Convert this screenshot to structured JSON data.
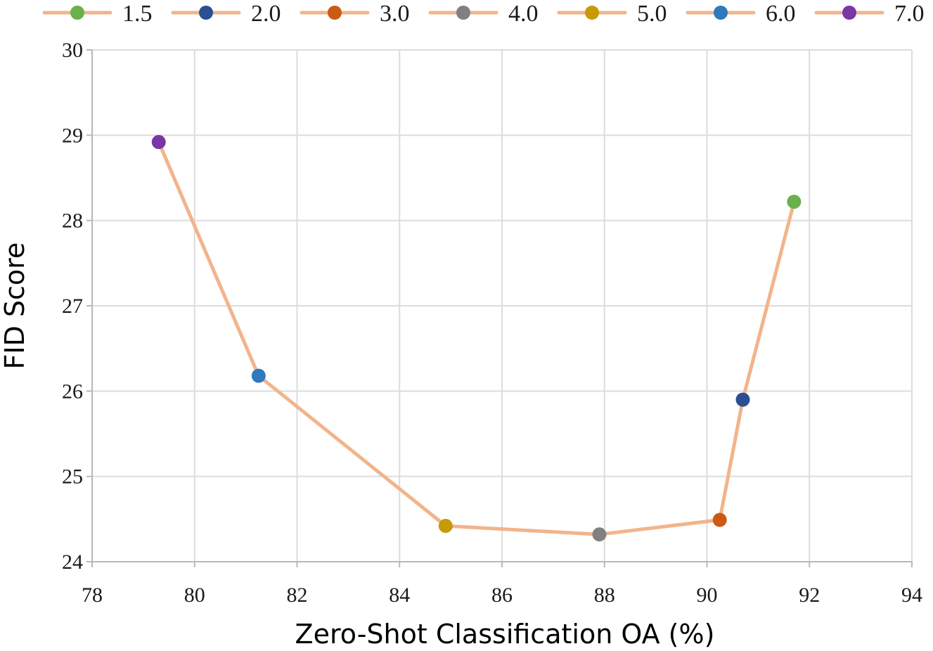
{
  "chart_data": {
    "type": "line",
    "xlabel": "Zero-Shot Classification OA (%)",
    "ylabel": "FID Score",
    "xlim": [
      78,
      94
    ],
    "ylim": [
      24,
      30
    ],
    "x_ticks": [
      78,
      80,
      82,
      84,
      86,
      88,
      90,
      92,
      94
    ],
    "y_ticks": [
      24,
      25,
      26,
      27,
      28,
      29,
      30
    ],
    "grid": true,
    "legend_position": "top",
    "line_color": "#f2b48c",
    "series": [
      {
        "points": [
          {
            "label": "7.0",
            "x": 79.3,
            "y": 28.92,
            "color": "#7a35a6"
          },
          {
            "label": "6.0",
            "x": 81.25,
            "y": 26.18,
            "color": "#2f79bd"
          },
          {
            "label": "5.0",
            "x": 84.9,
            "y": 24.42,
            "color": "#c79a05"
          },
          {
            "label": "4.0",
            "x": 87.9,
            "y": 24.32,
            "color": "#808080"
          },
          {
            "label": "3.0",
            "x": 90.25,
            "y": 24.49,
            "color": "#cc5a15"
          },
          {
            "label": "2.0",
            "x": 90.7,
            "y": 25.9,
            "color": "#2c4f91"
          },
          {
            "label": "1.5",
            "x": 91.7,
            "y": 28.22,
            "color": "#6ab04c"
          }
        ]
      }
    ],
    "legend": [
      {
        "label": "1.5",
        "color": "#6ab04c"
      },
      {
        "label": "2.0",
        "color": "#2c4f91"
      },
      {
        "label": "3.0",
        "color": "#cc5a15"
      },
      {
        "label": "4.0",
        "color": "#808080"
      },
      {
        "label": "5.0",
        "color": "#c79a05"
      },
      {
        "label": "6.0",
        "color": "#2f79bd"
      },
      {
        "label": "7.0",
        "color": "#7a35a6"
      }
    ]
  }
}
